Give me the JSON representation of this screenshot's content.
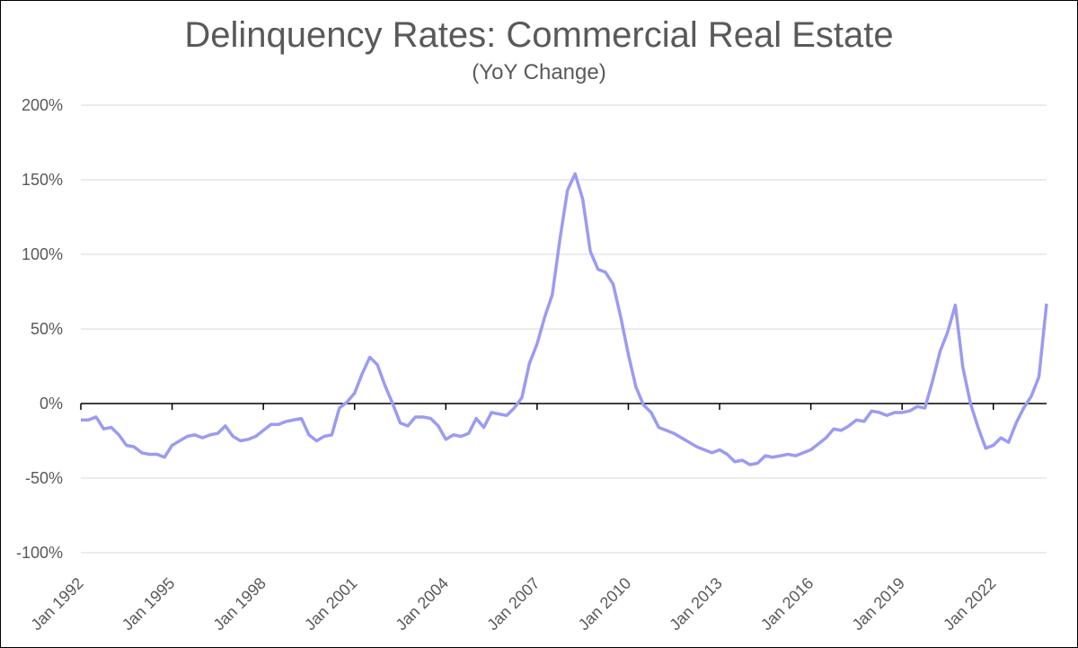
{
  "chart_data": {
    "type": "line",
    "title": "Delinquency Rates: Commercial Real Estate",
    "subtitle": "(YoY Change)",
    "categories": [
      "Jan 1992",
      null,
      null,
      null,
      null,
      null,
      null,
      null,
      null,
      null,
      null,
      null,
      "Jan 1995",
      null,
      null,
      null,
      null,
      null,
      null,
      null,
      null,
      null,
      null,
      null,
      "Jan 1998",
      null,
      null,
      null,
      null,
      null,
      null,
      null,
      null,
      null,
      null,
      null,
      "Jan 2001",
      null,
      null,
      null,
      null,
      null,
      null,
      null,
      null,
      null,
      null,
      null,
      "Jan 2004",
      null,
      null,
      null,
      null,
      null,
      null,
      null,
      null,
      null,
      null,
      null,
      "Jan 2007",
      null,
      null,
      null,
      null,
      null,
      null,
      null,
      null,
      null,
      null,
      null,
      "Jan 2010",
      null,
      null,
      null,
      null,
      null,
      null,
      null,
      null,
      null,
      null,
      null,
      "Jan 2013",
      null,
      null,
      null,
      null,
      null,
      null,
      null,
      null,
      null,
      null,
      null,
      "Jan 2016",
      null,
      null,
      null,
      null,
      null,
      null,
      null,
      null,
      null,
      null,
      null,
      "Jan 2019",
      null,
      null,
      null,
      null,
      null,
      null,
      null,
      null,
      null,
      null,
      null,
      "Jan 2022",
      null,
      null,
      null,
      null,
      null,
      null,
      null
    ],
    "series": [
      {
        "color": "#9b9bf2",
        "values": [
          -11,
          -11,
          -9,
          -17,
          -16,
          -21,
          -28,
          -29,
          -33,
          -34,
          -34,
          -36,
          -28,
          -25,
          -22,
          -21,
          -23,
          -21,
          -20,
          -15,
          -22,
          -25,
          -24,
          -22,
          -18,
          -14,
          -14,
          -12,
          -11,
          -10,
          -21,
          -25,
          -22,
          -21,
          -3,
          1,
          7,
          20,
          31,
          26,
          12,
          0,
          -13,
          -15,
          -9,
          -9,
          -10,
          -15,
          -24,
          -21,
          -22,
          -20,
          -10,
          -16,
          -6,
          -7,
          -8,
          -3,
          4,
          27,
          40,
          58,
          73,
          110,
          143,
          154,
          137,
          102,
          90,
          88,
          80,
          58,
          33,
          11,
          -1,
          -6,
          -16,
          -18,
          -20,
          -23,
          -26,
          -29,
          -31,
          -33,
          -31,
          -34,
          -39,
          -38,
          -41,
          -40,
          -35,
          -36,
          -35,
          -34,
          -35,
          -33,
          -31,
          -27,
          -23,
          -17,
          -18,
          -15,
          -11,
          -12,
          -5,
          -6,
          -8,
          -6,
          -6,
          -5,
          -2,
          -3,
          15,
          35,
          48,
          66,
          24,
          0,
          -16,
          -30,
          -28,
          -23,
          -26,
          -13,
          -3,
          5,
          18,
          67
        ]
      }
    ],
    "ylim": [
      -100,
      200
    ],
    "yticks": [
      {
        "value": -100,
        "label": "-100%"
      },
      {
        "value": -50,
        "label": "-50%"
      },
      {
        "value": 0,
        "label": "0%"
      },
      {
        "value": 50,
        "label": "50%"
      },
      {
        "value": 100,
        "label": "100%"
      },
      {
        "value": 150,
        "label": "150%"
      },
      {
        "value": 200,
        "label": "200%"
      }
    ],
    "grid": true
  }
}
